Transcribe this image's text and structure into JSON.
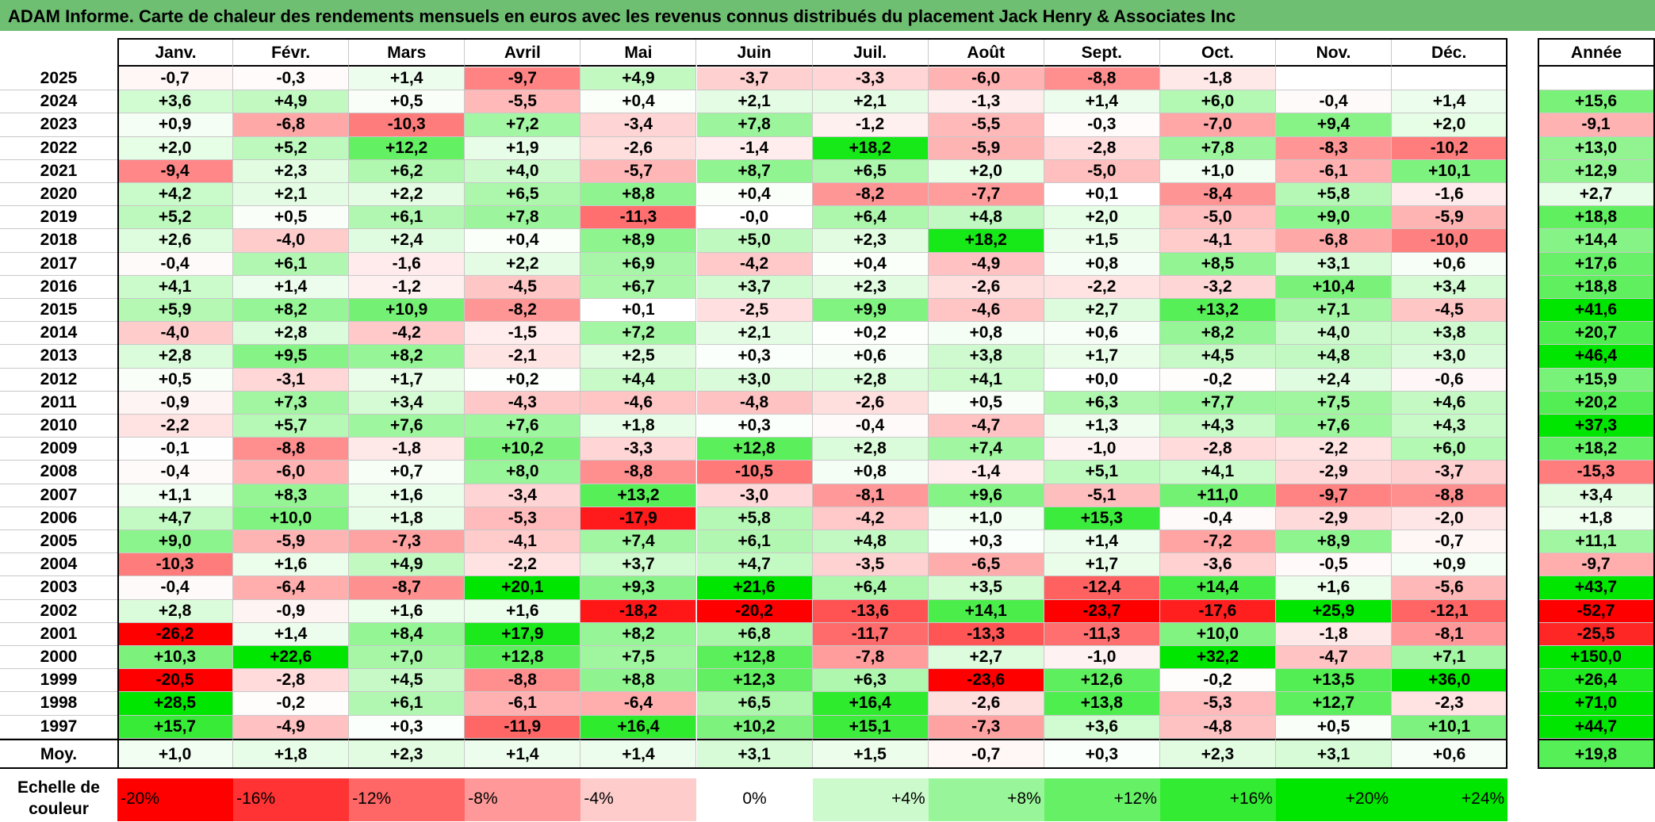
{
  "title": "ADAM Informe. Carte de chaleur des rendements mensuels en euros avec les revenus connus distribués du placement Jack Henry & Associates Inc",
  "colors": {
    "title_bg": "#6fbf73",
    "max_green": "#00e600",
    "max_red": "#ff0000",
    "neutral": "#ffffff"
  },
  "chart_data": {
    "type": "heatmap",
    "title": "ADAM Informe. Carte de chaleur des rendements mensuels en euros avec les revenus connus distribués du placement Jack Henry & Associates Inc",
    "months": [
      "Janv.",
      "Févr.",
      "Mars",
      "Avril",
      "Mai",
      "Juin",
      "Juil.",
      "Août",
      "Sept.",
      "Oct.",
      "Nov.",
      "Déc."
    ],
    "year_header": "Année",
    "rows": [
      {
        "year": "2025",
        "values": [
          "-0,7",
          "-0,3",
          "+1,4",
          "-9,7",
          "+4,9",
          "-3,7",
          "-3,3",
          "-6,0",
          "-8,8",
          "-1,8",
          "",
          ""
        ],
        "annual": ""
      },
      {
        "year": "2024",
        "values": [
          "+3,6",
          "+4,9",
          "+0,5",
          "-5,5",
          "+0,4",
          "+2,1",
          "+2,1",
          "-1,3",
          "+1,4",
          "+6,0",
          "-0,4",
          "+1,4"
        ],
        "annual": "+15,6"
      },
      {
        "year": "2023",
        "values": [
          "+0,9",
          "-6,8",
          "-10,3",
          "+7,2",
          "-3,4",
          "+7,8",
          "-1,2",
          "-5,5",
          "-0,3",
          "-7,0",
          "+9,4",
          "+2,0"
        ],
        "annual": "-9,1"
      },
      {
        "year": "2022",
        "values": [
          "+2,0",
          "+5,2",
          "+12,2",
          "+1,9",
          "-2,6",
          "-1,4",
          "+18,2",
          "-5,9",
          "-2,8",
          "+7,8",
          "-8,3",
          "-10,2"
        ],
        "annual": "+13,0"
      },
      {
        "year": "2021",
        "values": [
          "-9,4",
          "+2,3",
          "+6,2",
          "+4,0",
          "-5,7",
          "+8,7",
          "+6,5",
          "+2,0",
          "-5,0",
          "+1,0",
          "-6,1",
          "+10,1"
        ],
        "annual": "+12,9"
      },
      {
        "year": "2020",
        "values": [
          "+4,2",
          "+2,1",
          "+2,2",
          "+6,5",
          "+8,8",
          "+0,4",
          "-8,2",
          "-7,7",
          "+0,1",
          "-8,4",
          "+5,8",
          "-1,6"
        ],
        "annual": "+2,7"
      },
      {
        "year": "2019",
        "values": [
          "+5,2",
          "+0,5",
          "+6,1",
          "+7,8",
          "-11,3",
          "-0,0",
          "+6,4",
          "+4,8",
          "+2,0",
          "-5,0",
          "+9,0",
          "-5,9"
        ],
        "annual": "+18,8"
      },
      {
        "year": "2018",
        "values": [
          "+2,6",
          "-4,0",
          "+2,4",
          "+0,4",
          "+8,9",
          "+5,0",
          "+2,3",
          "+18,2",
          "+1,5",
          "-4,1",
          "-6,8",
          "-10,0"
        ],
        "annual": "+14,4"
      },
      {
        "year": "2017",
        "values": [
          "-0,4",
          "+6,1",
          "-1,6",
          "+2,2",
          "+6,9",
          "-4,2",
          "+0,4",
          "-4,9",
          "+0,8",
          "+8,5",
          "+3,1",
          "+0,6"
        ],
        "annual": "+17,6"
      },
      {
        "year": "2016",
        "values": [
          "+4,1",
          "+1,4",
          "-1,2",
          "-4,5",
          "+6,7",
          "+3,7",
          "+2,3",
          "-2,6",
          "-2,2",
          "-3,2",
          "+10,4",
          "+3,4"
        ],
        "annual": "+18,8"
      },
      {
        "year": "2015",
        "values": [
          "+5,9",
          "+8,2",
          "+10,9",
          "-8,2",
          "+0,1",
          "-2,5",
          "+9,9",
          "-4,6",
          "+2,7",
          "+13,2",
          "+7,1",
          "-4,5"
        ],
        "annual": "+41,6"
      },
      {
        "year": "2014",
        "values": [
          "-4,0",
          "+2,8",
          "-4,2",
          "-1,5",
          "+7,2",
          "+2,1",
          "+0,2",
          "+0,8",
          "+0,6",
          "+8,2",
          "+4,0",
          "+3,8"
        ],
        "annual": "+20,7"
      },
      {
        "year": "2013",
        "values": [
          "+2,8",
          "+9,5",
          "+8,2",
          "-2,1",
          "+2,5",
          "+0,3",
          "+0,6",
          "+3,8",
          "+1,7",
          "+4,5",
          "+4,8",
          "+3,0"
        ],
        "annual": "+46,4"
      },
      {
        "year": "2012",
        "values": [
          "+0,5",
          "-3,1",
          "+1,7",
          "+0,2",
          "+4,4",
          "+3,0",
          "+2,8",
          "+4,1",
          "+0,0",
          "-0,2",
          "+2,4",
          "-0,6"
        ],
        "annual": "+15,9"
      },
      {
        "year": "2011",
        "values": [
          "-0,9",
          "+7,3",
          "+3,4",
          "-4,3",
          "-4,6",
          "-4,8",
          "-2,6",
          "+0,5",
          "+6,3",
          "+7,7",
          "+7,5",
          "+4,6"
        ],
        "annual": "+20,2"
      },
      {
        "year": "2010",
        "values": [
          "-2,2",
          "+5,7",
          "+7,6",
          "+7,6",
          "+1,8",
          "+0,3",
          "-0,4",
          "-4,7",
          "+1,3",
          "+4,3",
          "+7,6",
          "+4,3"
        ],
        "annual": "+37,3"
      },
      {
        "year": "2009",
        "values": [
          "-0,1",
          "-8,8",
          "-1,8",
          "+10,2",
          "-3,3",
          "+12,8",
          "+2,8",
          "+7,4",
          "-1,0",
          "-2,8",
          "-2,2",
          "+6,0"
        ],
        "annual": "+18,2"
      },
      {
        "year": "2008",
        "values": [
          "-0,4",
          "-6,0",
          "+0,7",
          "+8,0",
          "-8,8",
          "-10,5",
          "+0,8",
          "-1,4",
          "+5,1",
          "+4,1",
          "-2,9",
          "-3,7"
        ],
        "annual": "-15,3"
      },
      {
        "year": "2007",
        "values": [
          "+1,1",
          "+8,3",
          "+1,6",
          "-3,4",
          "+13,2",
          "-3,0",
          "-8,1",
          "+9,6",
          "-5,1",
          "+11,0",
          "-9,7",
          "-8,8"
        ],
        "annual": "+3,4"
      },
      {
        "year": "2006",
        "values": [
          "+4,7",
          "+10,0",
          "+1,8",
          "-5,3",
          "-17,9",
          "+5,8",
          "-4,2",
          "+1,0",
          "+15,3",
          "-0,4",
          "-2,9",
          "-2,0"
        ],
        "annual": "+1,8"
      },
      {
        "year": "2005",
        "values": [
          "+9,0",
          "-5,9",
          "-7,3",
          "-4,1",
          "+7,4",
          "+6,1",
          "+4,8",
          "+0,3",
          "+1,4",
          "-7,2",
          "+8,9",
          "-0,7"
        ],
        "annual": "+11,1"
      },
      {
        "year": "2004",
        "values": [
          "-10,3",
          "+1,6",
          "+4,9",
          "-2,2",
          "+3,7",
          "+4,7",
          "-3,5",
          "-6,5",
          "+1,7",
          "-3,6",
          "-0,5",
          "+0,9"
        ],
        "annual": "-9,7"
      },
      {
        "year": "2003",
        "values": [
          "-0,4",
          "-6,4",
          "-8,7",
          "+20,1",
          "+9,3",
          "+21,6",
          "+6,4",
          "+3,5",
          "-12,4",
          "+14,4",
          "+1,6",
          "-5,6"
        ],
        "annual": "+43,7"
      },
      {
        "year": "2002",
        "values": [
          "+2,8",
          "-0,9",
          "+1,6",
          "+1,6",
          "-18,2",
          "-20,2",
          "-13,6",
          "+14,1",
          "-23,7",
          "-17,6",
          "+25,9",
          "-12,1"
        ],
        "annual": "-52,7"
      },
      {
        "year": "2001",
        "values": [
          "-26,2",
          "+1,4",
          "+8,4",
          "+17,9",
          "+8,2",
          "+6,8",
          "-11,7",
          "-13,3",
          "-11,3",
          "+10,0",
          "-1,8",
          "-8,1"
        ],
        "annual": "-25,5"
      },
      {
        "year": "2000",
        "values": [
          "+10,3",
          "+22,6",
          "+7,0",
          "+12,8",
          "+7,5",
          "+12,8",
          "-7,8",
          "+2,7",
          "-1,0",
          "+32,2",
          "-4,7",
          "+7,1"
        ],
        "annual": "+150,0"
      },
      {
        "year": "1999",
        "values": [
          "-20,5",
          "-2,8",
          "+4,5",
          "-8,8",
          "+8,8",
          "+12,3",
          "+6,3",
          "-23,6",
          "+12,6",
          "-0,2",
          "+13,5",
          "+36,0"
        ],
        "annual": "+26,4"
      },
      {
        "year": "1998",
        "values": [
          "+28,5",
          "-0,2",
          "+6,1",
          "-6,1",
          "-6,4",
          "+6,5",
          "+16,4",
          "-2,6",
          "+13,8",
          "-5,3",
          "+12,7",
          "-2,3"
        ],
        "annual": "+71,0"
      },
      {
        "year": "1997",
        "values": [
          "+15,7",
          "-4,9",
          "+0,3",
          "-11,9",
          "+16,4",
          "+10,2",
          "+15,1",
          "-7,3",
          "+3,6",
          "-4,8",
          "+0,5",
          "+10,1"
        ],
        "annual": "+44,7"
      }
    ],
    "average": {
      "label": "Moy.",
      "values": [
        "+1,0",
        "+1,8",
        "+2,3",
        "+1,4",
        "+1,4",
        "+3,1",
        "+1,5",
        "-0,7",
        "+0,3",
        "+2,3",
        "+3,1",
        "+0,6"
      ],
      "annual": "+19,8"
    },
    "scale": {
      "label": "Echelle de couleur",
      "items": [
        {
          "label": "-20%",
          "value": -20
        },
        {
          "label": "-16%",
          "value": -16
        },
        {
          "label": "-12%",
          "value": -12
        },
        {
          "label": "-8%",
          "value": -8
        },
        {
          "label": "-4%",
          "value": -4
        },
        {
          "label": "0%",
          "value": 0
        },
        {
          "label": "+4%",
          "value": 4
        },
        {
          "label": "+8%",
          "value": 8
        },
        {
          "label": "+12%",
          "value": 12
        },
        {
          "label": "+16%",
          "value": 16
        },
        {
          "label": "+20%",
          "value": 20
        },
        {
          "label": "+24%",
          "value": 24
        }
      ]
    }
  }
}
